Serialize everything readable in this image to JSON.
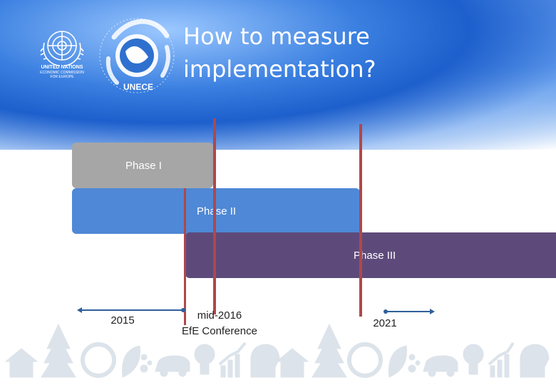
{
  "slide": {
    "title": "How to measure\nimplementation?"
  },
  "logos": {
    "un": {
      "line1": "UNITED NATIONS",
      "line2": "ECONOMIC COMMISSION",
      "line3": "FOR EUROPE"
    },
    "unece": {
      "text": "UNECE"
    }
  },
  "phases": [
    {
      "label": "Phase I",
      "color": "#a6a6a6"
    },
    {
      "label": "Phase II",
      "color": "#4f88d6"
    },
    {
      "label": "Phase III",
      "color": "#5e4a7a"
    }
  ],
  "timeline": {
    "start_label": "2015",
    "middle_label_line1": "mid-2016",
    "middle_label_line2": "EfE Conference",
    "end_label": "2021",
    "marker_color": "#b0474a",
    "axis_color": "#2f5f9a"
  },
  "decor": {
    "icon_color": "#dce3ea",
    "icons": [
      "house-icon",
      "pine-tree-icon",
      "recycle-globe-icon",
      "leaf-icon",
      "water-drops-icon",
      "car-icon",
      "lightbulb-icon",
      "growth-chart-icon",
      "head-gear-icon"
    ]
  }
}
